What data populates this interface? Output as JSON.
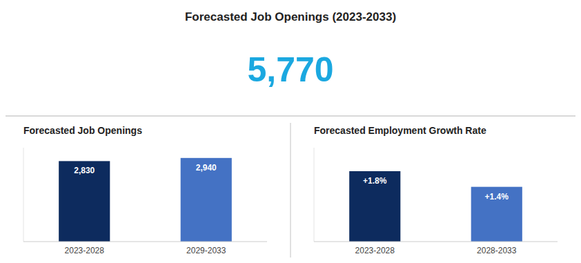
{
  "title": "Forecasted Job Openings (2023-2033)",
  "annotations": [
    {
      "text": "5,770",
      "color": "#1BA8E0"
    }
  ],
  "chart_data": [
    {
      "type": "bar",
      "title": "Forecasted Job Openings",
      "categories": [
        "2023-2028",
        "2029-2033"
      ],
      "values": [
        2830,
        2940
      ],
      "value_labels": [
        "2,830",
        "2,940"
      ],
      "colors": [
        "#0D2B5E",
        "#4472C4"
      ],
      "ylim": [
        0,
        3300
      ],
      "yticks": [],
      "grid": false,
      "data_labels": true,
      "tick_labels": "x"
    },
    {
      "type": "bar",
      "title": "Forecasted Employment Growth Rate",
      "categories": [
        "2023-2028",
        "2028-2033"
      ],
      "values": [
        1.8,
        1.4
      ],
      "value_labels": [
        "+1.8%",
        "+1.4%"
      ],
      "colors": [
        "#0D2B5E",
        "#4472C4"
      ],
      "ylim": [
        0,
        2.4
      ],
      "yticks": [],
      "grid": false,
      "data_labels": true,
      "tick_labels": "x"
    }
  ]
}
